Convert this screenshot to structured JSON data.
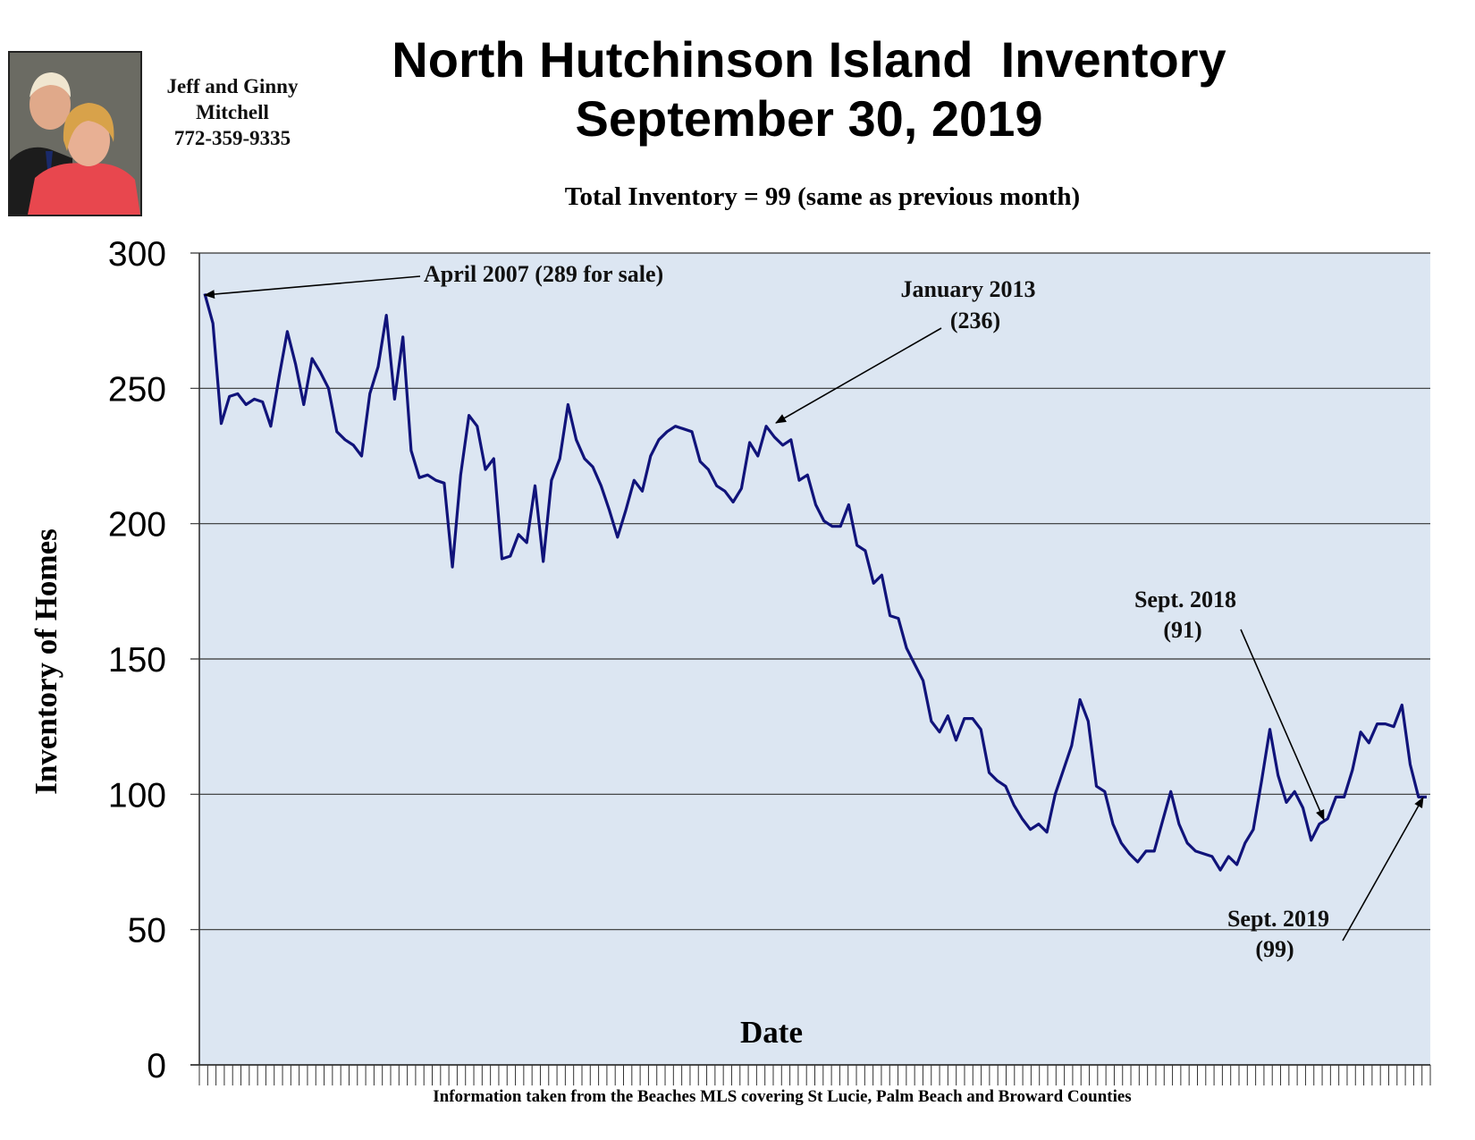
{
  "header": {
    "contact_line1": "Jeff and Ginny",
    "contact_line2": "Mitchell",
    "contact_phone": "772-359-9335",
    "title_line1": "North Hutchinson Island  Inventory",
    "title_line2": "September 30, 2019",
    "subtitle": "Total Inventory = 99 (same as previous month)"
  },
  "footer": {
    "source": "Information taken from the Beaches MLS covering St Lucie, Palm Beach and Broward Counties"
  },
  "annotations": {
    "april2007": "April 2007 (289 for sale)",
    "jan2013_line1": "January 2013",
    "jan2013_line2": "(236)",
    "sept2018_line1": "Sept. 2018",
    "sept2018_line2": "(91)",
    "sept2019_line1": "Sept. 2019",
    "sept2019_line2": "(99)"
  },
  "colors": {
    "line": "#10137a",
    "plot_background": "#dce6f2",
    "grid": "#333333"
  },
  "chart_data": {
    "type": "line",
    "xlabel": "Date",
    "ylabel": "Inventory of Homes",
    "ylim": [
      0,
      300
    ],
    "yticks": [
      0,
      50,
      100,
      150,
      200,
      250,
      300
    ],
    "grid": true,
    "series": [
      {
        "values": [
          285,
          274,
          237,
          247,
          248,
          244,
          246,
          245,
          236,
          254,
          271,
          259,
          244,
          261,
          256,
          250,
          234,
          231,
          229,
          225,
          248,
          258,
          277,
          246,
          269,
          227,
          217,
          218,
          216,
          215,
          184,
          218,
          240,
          236,
          220,
          224,
          187,
          188,
          196,
          193,
          214,
          186,
          216,
          224,
          244,
          231,
          224,
          221,
          214,
          205,
          195,
          205,
          216,
          212,
          225,
          231,
          234,
          236,
          235,
          234,
          223,
          220,
          214,
          212,
          208,
          213,
          230,
          225,
          236,
          232,
          229,
          231,
          216,
          218,
          207,
          201,
          199,
          199,
          207,
          192,
          190,
          178,
          181,
          166,
          165,
          154,
          148,
          142,
          127,
          123,
          129,
          120,
          128,
          128,
          124,
          108,
          105,
          103,
          96,
          91,
          87,
          89,
          86,
          100,
          109,
          118,
          135,
          127,
          103,
          101,
          89,
          82,
          78,
          75,
          79,
          79,
          90,
          101,
          89,
          82,
          79,
          78,
          77,
          72,
          77,
          74,
          82,
          87,
          105,
          124,
          107,
          97,
          101,
          95,
          83,
          89,
          91,
          99,
          99,
          109,
          123,
          119,
          126,
          126,
          125,
          133,
          111,
          99,
          99
        ]
      }
    ]
  }
}
